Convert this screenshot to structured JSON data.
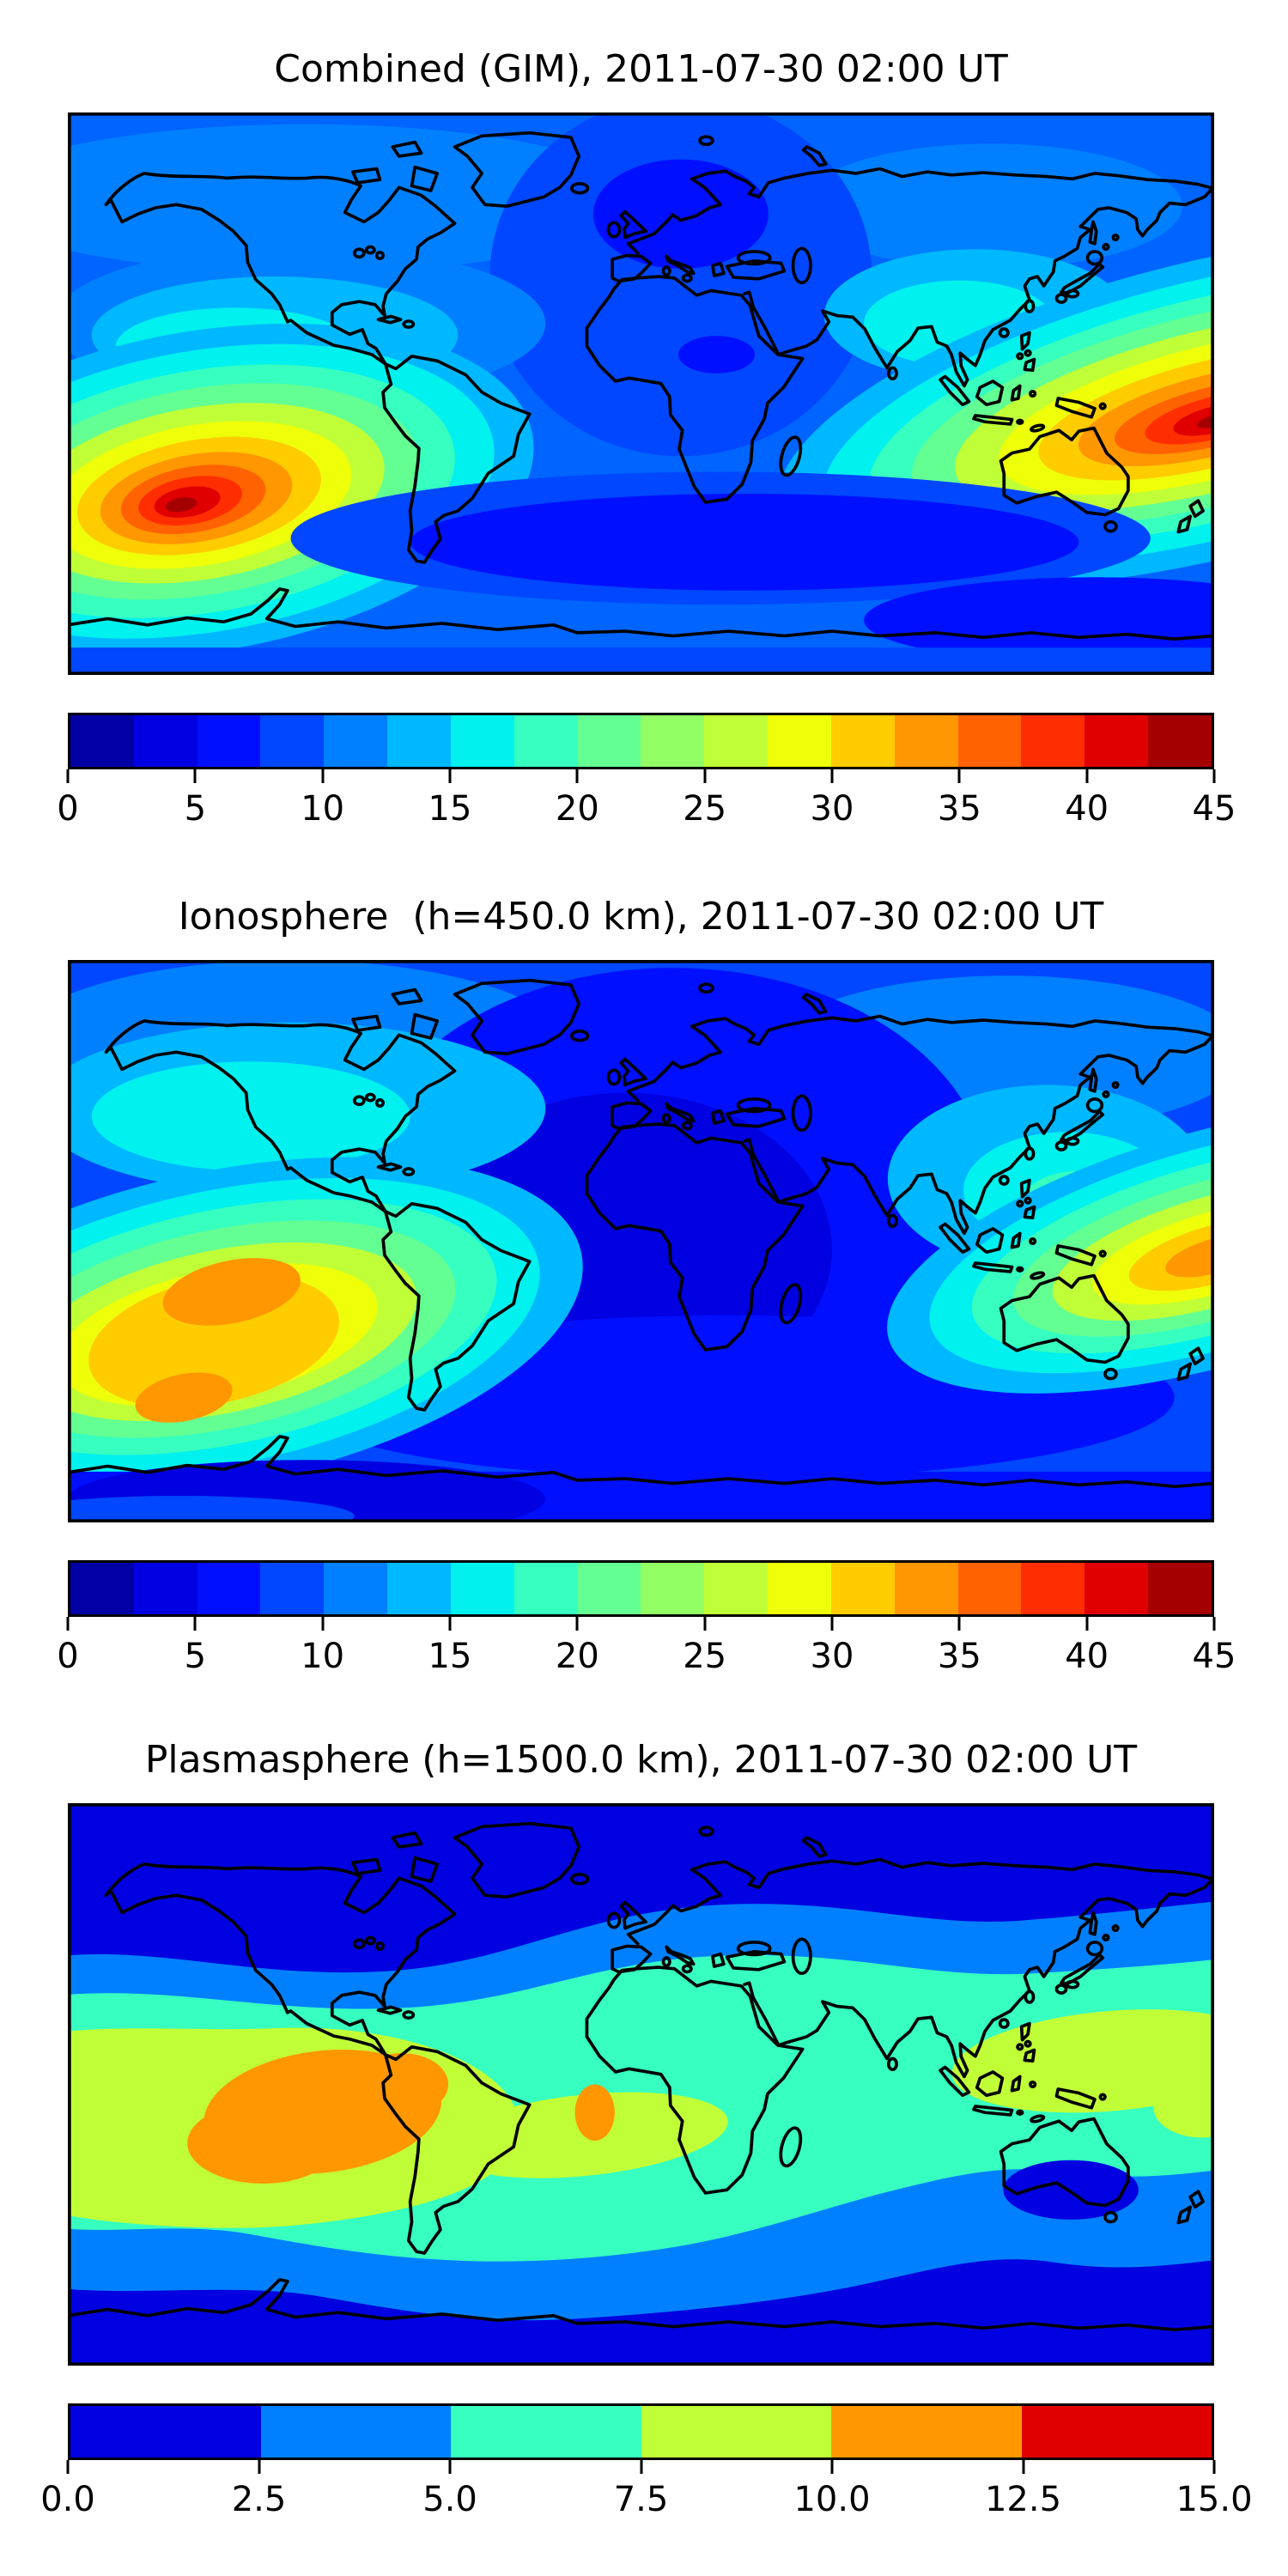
{
  "figure": {
    "background_color": "#ffffff",
    "colormap": "jet",
    "panels": [
      {
        "id": "combined",
        "title": "Combined (GIM), 2011-07-30 02:00 UT",
        "colorbar": {
          "min": 0,
          "max": 45,
          "tick_labels": [
            "0",
            "5",
            "10",
            "15",
            "20",
            "25",
            "30",
            "35",
            "40",
            "45"
          ],
          "segment_colors": [
            "#0000A5",
            "#0000E1",
            "#0010FF",
            "#0047FF",
            "#0080FF",
            "#00B8FF",
            "#00F1EE",
            "#37FFC0",
            "#64FF92",
            "#92FF64",
            "#C0FF37",
            "#EEFF09",
            "#FFCC00",
            "#FF9700",
            "#FF6200",
            "#FF2E00",
            "#E00000",
            "#A50000"
          ]
        }
      },
      {
        "id": "ionosphere",
        "title": "Ionosphere  (h=450.0 km), 2011-07-30 02:00 UT",
        "colorbar": {
          "min": 0,
          "max": 45,
          "tick_labels": [
            "0",
            "5",
            "10",
            "15",
            "20",
            "25",
            "30",
            "35",
            "40",
            "45"
          ],
          "segment_colors": [
            "#0000A5",
            "#0000E1",
            "#0010FF",
            "#0047FF",
            "#0080FF",
            "#00B8FF",
            "#00F1EE",
            "#37FFC0",
            "#64FF92",
            "#92FF64",
            "#C0FF37",
            "#EEFF09",
            "#FFCC00",
            "#FF9700",
            "#FF6200",
            "#FF2E00",
            "#E00000",
            "#A50000"
          ]
        }
      },
      {
        "id": "plasmasphere",
        "title": "Plasmasphere (h=1500.0 km), 2011-07-30 02:00 UT",
        "colorbar": {
          "min": 0,
          "max": 15,
          "tick_labels": [
            "0.0",
            "2.5",
            "5.0",
            "7.5",
            "10.0",
            "12.5",
            "15.0"
          ],
          "segment_colors": [
            "#0000E0",
            "#0080FF",
            "#37FFC0",
            "#C0FF37",
            "#FF9700",
            "#E00000"
          ]
        }
      }
    ]
  },
  "chart_data": [
    {
      "type": "heatmap",
      "title": "Combined (GIM), 2011-07-30 02:00 UT",
      "projection": "equirectangular-world-map-with-coastlines",
      "x_range_lon": [
        -180,
        180
      ],
      "y_range_lat": [
        -90,
        90
      ],
      "value_range": [
        0,
        45
      ],
      "contour_interval": 2.5,
      "colormap": "jet",
      "legend_position": "horizontal colorbar below map",
      "features": [
        {
          "name": "peak-east-pacific",
          "approx_lon": -140,
          "approx_lat": -25,
          "approx_value": 45
        },
        {
          "name": "peak-west-pacific-right-edge",
          "approx_lon": 175,
          "approx_lat": -5,
          "approx_value": 45
        },
        {
          "name": "low-region-europe",
          "approx_lon": 10,
          "approx_lat": 55,
          "approx_value": 5
        },
        {
          "name": "low-band-south-indian-atlantic",
          "approx_lon": 30,
          "approx_lat": -45,
          "approx_value": 5
        },
        {
          "name": "cyan-band-north-america",
          "approx_lon": -110,
          "approx_lat": 40,
          "approx_value": 17.5
        },
        {
          "name": "cyan-patch-northeast-asia",
          "approx_lon": 105,
          "approx_lat": 45,
          "approx_value": 17.5
        }
      ]
    },
    {
      "type": "heatmap",
      "title": "Ionosphere  (h=450.0 km), 2011-07-30 02:00 UT",
      "projection": "equirectangular-world-map-with-coastlines",
      "x_range_lon": [
        -180,
        180
      ],
      "y_range_lat": [
        -90,
        90
      ],
      "value_range": [
        0,
        45
      ],
      "contour_interval": 2.5,
      "colormap": "jet",
      "legend_position": "horizontal colorbar below map",
      "features": [
        {
          "name": "peak-east-pacific-double-core",
          "approx_lon": -140,
          "approx_lat": -20,
          "approx_value": 35
        },
        {
          "name": "peak-west-pacific-right-edge",
          "approx_lon": 178,
          "approx_lat": -20,
          "approx_value": 35
        },
        {
          "name": "low-region-atlantic-africa",
          "approx_lon": 0,
          "approx_lat": 0,
          "approx_value": 2.5
        },
        {
          "name": "cyan-band-north-america",
          "approx_lon": -120,
          "approx_lat": 45,
          "approx_value": 15
        },
        {
          "name": "cyan-patch-japan-east-asia",
          "approx_lon": 135,
          "approx_lat": 40,
          "approx_value": 17.5
        }
      ]
    },
    {
      "type": "heatmap",
      "title": "Plasmasphere (h=1500.0 km), 2011-07-30 02:00 UT",
      "projection": "equirectangular-world-map-with-coastlines",
      "x_range_lon": [
        -180,
        180
      ],
      "y_range_lat": [
        -90,
        90
      ],
      "value_range": [
        0,
        15
      ],
      "contour_interval": 2.5,
      "colormap": "jet",
      "legend_position": "horizontal colorbar below map",
      "features": [
        {
          "name": "peak-south-america-east-pacific",
          "approx_lon": -98,
          "approx_lat": -10,
          "approx_value": 12.5
        },
        {
          "name": "secondary-peak-south-atlantic",
          "approx_lon": -15,
          "approx_lat": -9,
          "approx_value": 12.5
        },
        {
          "name": "equatorial-green-band",
          "approx_lon": 0,
          "approx_lat": -10,
          "approx_value": 10
        },
        {
          "name": "green-patch-west-pacific",
          "approx_lon": 145,
          "approx_lat": 5,
          "approx_value": 10
        },
        {
          "name": "turquoise-mid-latitude-band",
          "approx_lon": 0,
          "approx_lat": 20,
          "approx_value": 7.5
        },
        {
          "name": "polar-minimum-north-and-south",
          "approx_lon": 0,
          "approx_lat": 75,
          "approx_value": 2.5
        },
        {
          "name": "low-pocket-south-australia",
          "approx_lon": 135,
          "approx_lat": -32,
          "approx_value": 2.5
        }
      ]
    }
  ]
}
